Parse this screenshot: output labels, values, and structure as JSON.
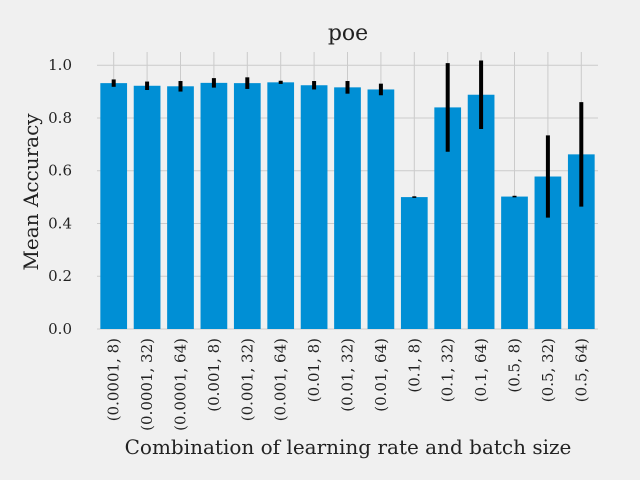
{
  "chart_data": {
    "type": "bar",
    "title": "poe",
    "xlabel": "Combination of learning rate and batch size",
    "ylabel": "Mean Accuracy",
    "ylim": [
      0,
      1.05
    ],
    "yticks": [
      "0.0",
      "0.2",
      "0.4",
      "0.6",
      "0.8",
      "1.0"
    ],
    "grid": true,
    "bar_color": "#008fd5",
    "error_color": "#000000",
    "background": "#f0f0f0",
    "categories": [
      "(0.0001, 8)",
      "(0.0001, 32)",
      "(0.0001, 64)",
      "(0.001, 8)",
      "(0.001, 32)",
      "(0.001, 64)",
      "(0.01, 8)",
      "(0.01, 32)",
      "(0.01, 64)",
      "(0.1, 8)",
      "(0.1, 32)",
      "(0.1, 64)",
      "(0.5, 8)",
      "(0.5, 32)",
      "(0.5, 64)"
    ],
    "values": [
      0.932,
      0.922,
      0.92,
      0.933,
      0.932,
      0.935,
      0.924,
      0.916,
      0.908,
      0.5,
      0.84,
      0.888,
      0.502,
      0.578,
      0.662
    ],
    "errors": [
      0.014,
      0.016,
      0.02,
      0.018,
      0.022,
      0.006,
      0.016,
      0.024,
      0.022,
      0.003,
      0.168,
      0.13,
      0.003,
      0.156,
      0.198
    ]
  }
}
